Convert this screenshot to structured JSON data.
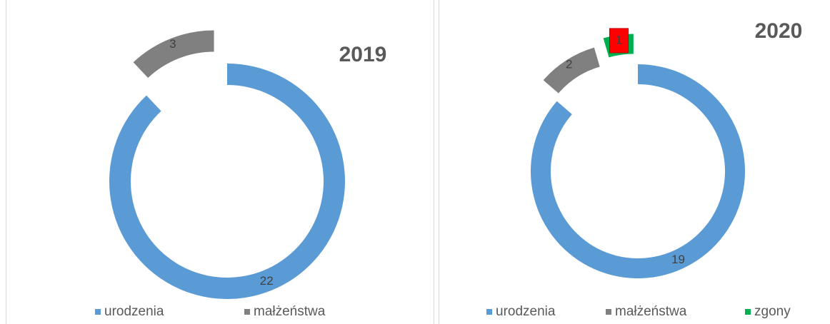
{
  "chart_data": [
    {
      "type": "donut",
      "title": "2019",
      "categories": [
        "urodzenia",
        "małżeństwa"
      ],
      "values": [
        22,
        3
      ],
      "colors": [
        "#5b9bd5",
        "#808080"
      ]
    },
    {
      "type": "donut",
      "title": "2020",
      "categories": [
        "urodzenia",
        "małżeństwa",
        "zgony"
      ],
      "values": [
        19,
        2,
        1
      ],
      "colors": [
        "#5b9bd5",
        "#808080",
        "#00b050"
      ],
      "label_backgrounds": [
        null,
        null,
        "#ff0000"
      ]
    }
  ]
}
